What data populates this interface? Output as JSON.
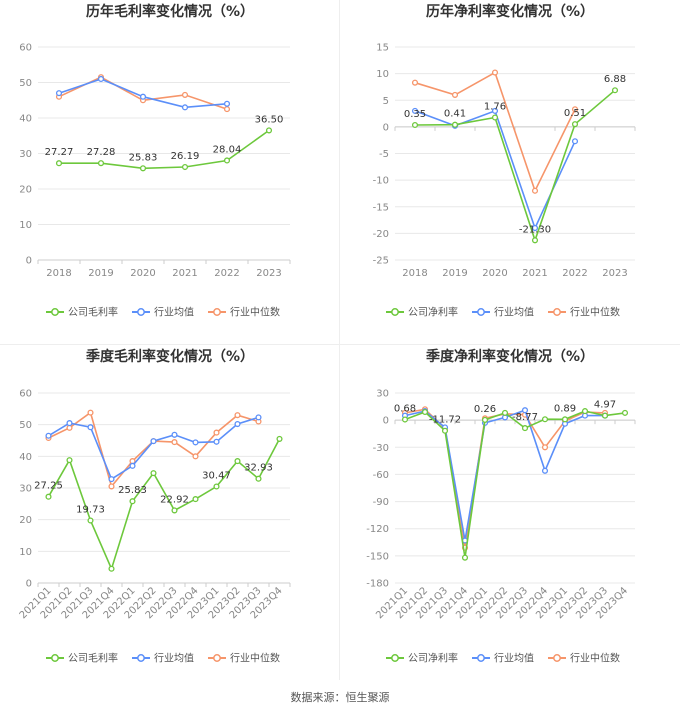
{
  "colors": {
    "company": "#6dc83c",
    "avg": "#5b8ff9",
    "median": "#f6956a",
    "grid": "#e8e8e8",
    "axis": "#cccccc"
  },
  "source": "数据来源：恒生聚源",
  "charts": [
    {
      "id": "annual-gross",
      "title": "历年毛利率变化情况（%）",
      "chart_data": {
        "type": "line",
        "categories": [
          "2018",
          "2019",
          "2020",
          "2021",
          "2022",
          "2023"
        ],
        "ylim": [
          0,
          60
        ],
        "yticks": [
          0,
          10,
          20,
          30,
          40,
          50,
          60
        ],
        "series": [
          {
            "name": "公司毛利率",
            "key": "company",
            "values": [
              27.27,
              27.28,
              25.83,
              26.19,
              28.04,
              36.5
            ],
            "labels": [
              "27.27",
              "27.28",
              "25.83",
              "26.19",
              "28.04",
              "36.50"
            ]
          },
          {
            "name": "行业均值",
            "key": "avg",
            "values": [
              47,
              51,
              46,
              43,
              44,
              null
            ]
          },
          {
            "name": "行业中位数",
            "key": "median",
            "values": [
              46,
              51.5,
              45,
              46.5,
              42.5,
              null
            ]
          }
        ]
      }
    },
    {
      "id": "annual-net",
      "title": "历年净利率变化情况（%）",
      "chart_data": {
        "type": "line",
        "categories": [
          "2018",
          "2019",
          "2020",
          "2021",
          "2022",
          "2023"
        ],
        "ylim": [
          -25,
          15
        ],
        "yticks": [
          -25,
          -20,
          -15,
          -10,
          -5,
          0,
          5,
          10,
          15
        ],
        "series": [
          {
            "name": "公司净利率",
            "key": "company",
            "values": [
              0.35,
              0.41,
              1.76,
              -21.3,
              0.51,
              6.88
            ],
            "labels": [
              "0.35",
              "0.41",
              "1.76",
              "-21.30",
              "0.51",
              "6.88"
            ]
          },
          {
            "name": "行业均值",
            "key": "avg",
            "values": [
              3,
              0.2,
              3,
              -19,
              -2.7,
              null
            ]
          },
          {
            "name": "行业中位数",
            "key": "median",
            "values": [
              8.3,
              6,
              10.2,
              -12,
              3.3,
              null
            ]
          }
        ]
      }
    },
    {
      "id": "quarterly-gross",
      "title": "季度毛利率变化情况（%）",
      "chart_data": {
        "type": "line",
        "categories": [
          "2021Q1",
          "2021Q2",
          "2021Q3",
          "2021Q4",
          "2022Q1",
          "2022Q2",
          "2022Q3",
          "2022Q4",
          "2023Q1",
          "2023Q2",
          "2023Q3",
          "2023Q4"
        ],
        "ylim": [
          0,
          60
        ],
        "yticks": [
          0,
          10,
          20,
          30,
          40,
          50,
          60
        ],
        "series": [
          {
            "name": "公司毛利率",
            "key": "company",
            "values": [
              27.25,
              38.8,
              19.73,
              4.5,
              25.83,
              34.7,
              22.92,
              26.5,
              30.47,
              38.5,
              32.93,
              45.5
            ],
            "labels": [
              "27.25",
              "",
              "19.73",
              "",
              "25.83",
              "",
              "22.92",
              "",
              "30.47",
              "",
              "32.93",
              ""
            ]
          },
          {
            "name": "行业均值",
            "key": "avg",
            "values": [
              46.5,
              50.5,
              49.2,
              32.8,
              37,
              44.8,
              46.8,
              44.4,
              44.6,
              50.2,
              52.3,
              null
            ]
          },
          {
            "name": "行业中位数",
            "key": "median",
            "values": [
              45.8,
              49,
              53.8,
              30.5,
              38.5,
              44.8,
              44.5,
              40,
              47.5,
              53,
              51,
              null
            ]
          }
        ]
      }
    },
    {
      "id": "quarterly-net",
      "title": "季度净利率变化情况（%）",
      "chart_data": {
        "type": "line",
        "categories": [
          "2021Q1",
          "2021Q2",
          "2021Q3",
          "2021Q4",
          "2022Q1",
          "2022Q2",
          "2022Q3",
          "2022Q4",
          "2023Q1",
          "2023Q2",
          "2023Q3",
          "2023Q4"
        ],
        "ylim": [
          -180,
          30
        ],
        "yticks": [
          -180,
          -150,
          -120,
          -90,
          -60,
          -30,
          0,
          30
        ],
        "series": [
          {
            "name": "公司净利率",
            "key": "company",
            "values": [
              0.68,
              9,
              -11.72,
              -152,
              0.26,
              8,
              -8.77,
              1,
              0.89,
              10,
              4.97,
              8
            ],
            "labels": [
              "0.68",
              "",
              "-11.72",
              "",
              "0.26",
              "",
              "-8.77",
              "",
              "0.89",
              "",
              "4.97",
              ""
            ]
          },
          {
            "name": "行业均值",
            "key": "avg",
            "values": [
              5,
              10,
              -8,
              -133,
              -3,
              3,
              11,
              -56,
              -4,
              5,
              5,
              null
            ]
          },
          {
            "name": "行业中位数",
            "key": "median",
            "values": [
              8,
              12,
              -9,
              -141,
              2,
              7,
              6,
              -30,
              -1,
              9,
              8,
              null
            ]
          }
        ]
      }
    }
  ]
}
